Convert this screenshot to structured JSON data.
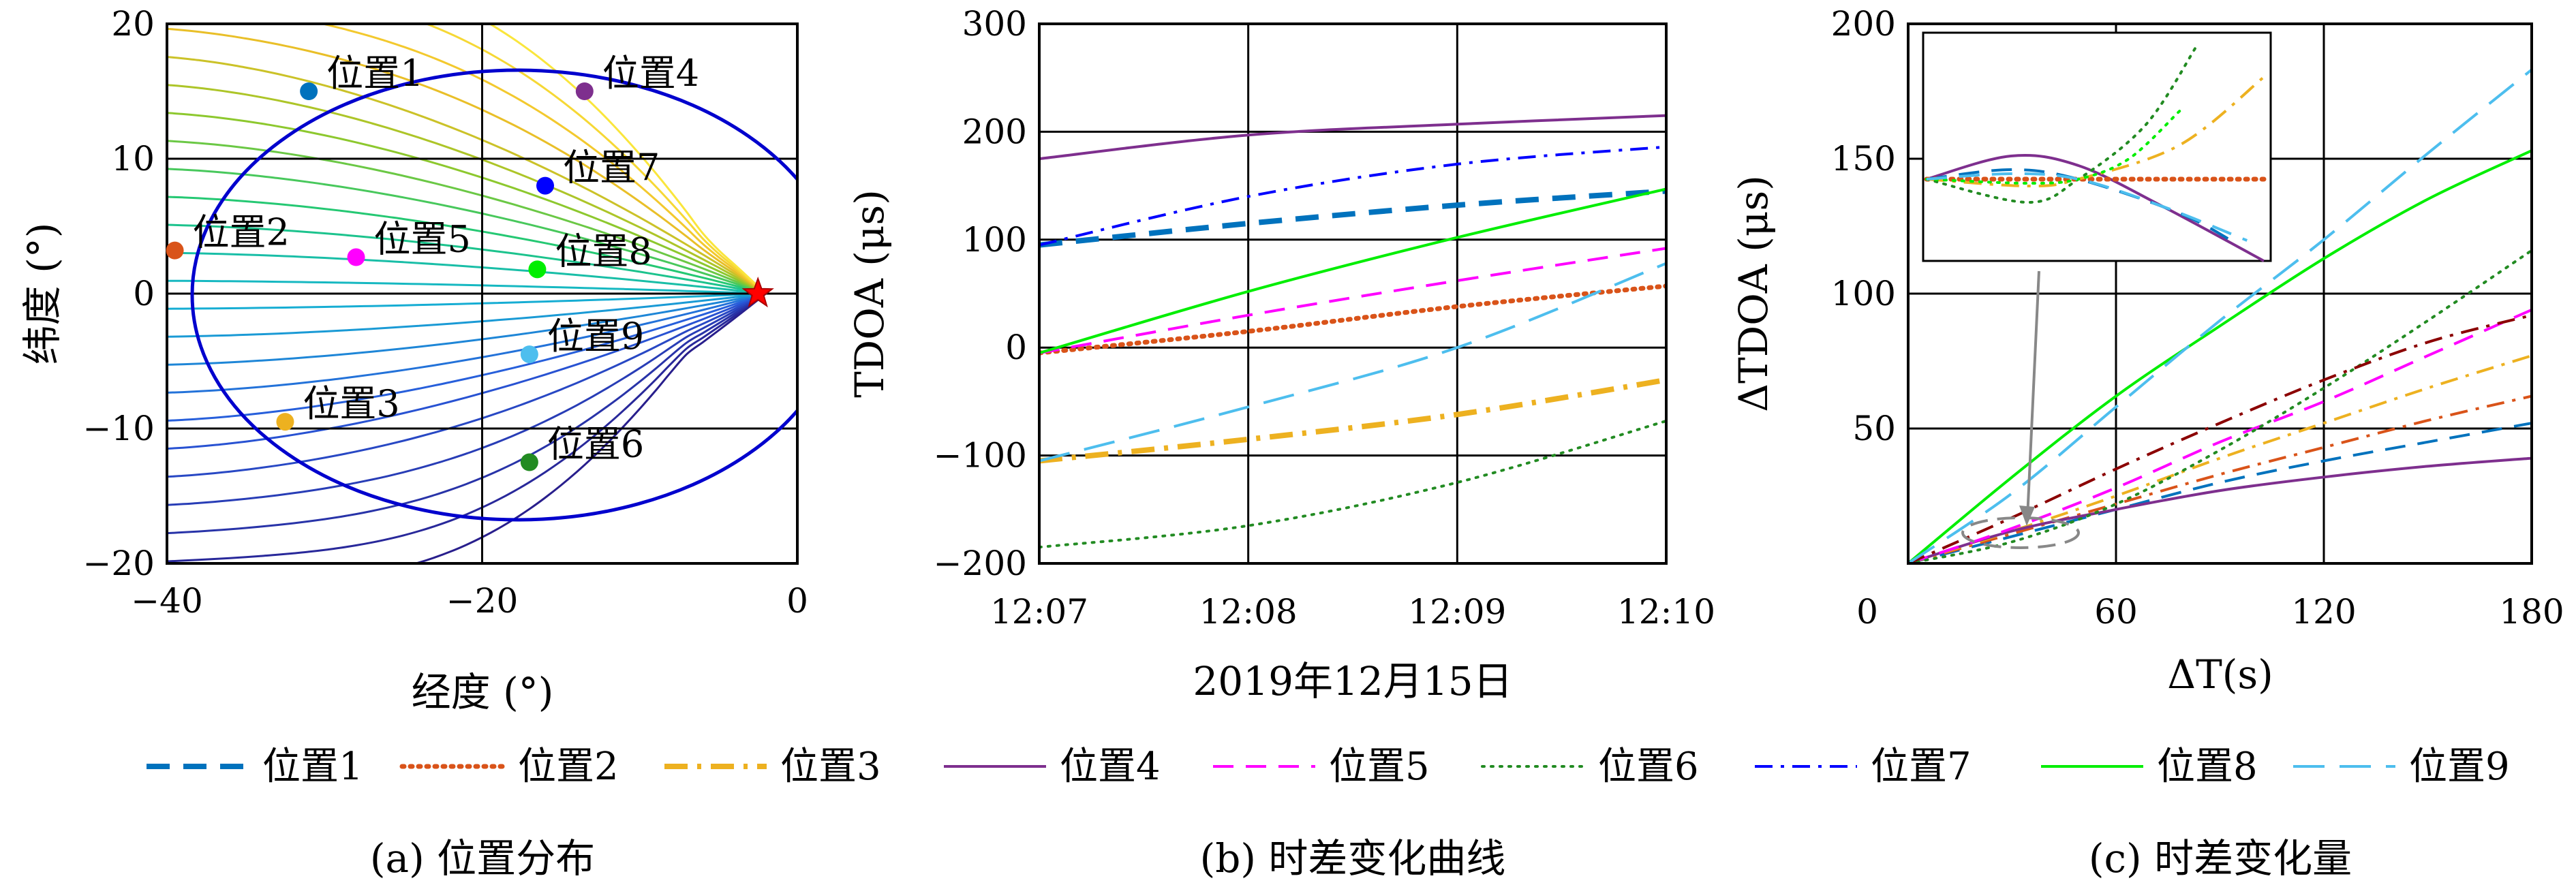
{
  "colors": {
    "pos1": "#0072BD",
    "pos2": "#D95319",
    "pos3": "#EDB120",
    "pos4": "#7E2F8E",
    "pos5": "#FF00FF",
    "pos6": "#228B22",
    "pos7": "#0000FF",
    "pos8": "#00EE00",
    "pos9": "#4DBEEE",
    "extra_c": "#8B0000",
    "star": "#FF0000",
    "ellipse": "#0000CD"
  },
  "legend": {
    "items": [
      {
        "key": "pos1",
        "label": "位置1",
        "style": "dashed-thick"
      },
      {
        "key": "pos2",
        "label": "位置2",
        "style": "dotted-thick"
      },
      {
        "key": "pos3",
        "label": "位置3",
        "style": "dashdot-thick"
      },
      {
        "key": "pos4",
        "label": "位置4",
        "style": "solid"
      },
      {
        "key": "pos5",
        "label": "位置5",
        "style": "dashed"
      },
      {
        "key": "pos6",
        "label": "位置6",
        "style": "dotted"
      },
      {
        "key": "pos7",
        "label": "位置7",
        "style": "dashdot"
      },
      {
        "key": "pos8",
        "label": "位置8",
        "style": "solid"
      },
      {
        "key": "pos9",
        "label": "位置9",
        "style": "dashed-long"
      }
    ]
  },
  "chart_data": [
    {
      "type": "scatter",
      "caption": "(a) 位置分布",
      "xlabel": "经度 (°)",
      "ylabel": "纬度 (°)",
      "xlim": [
        -40,
        0
      ],
      "ylim": [
        -20,
        20
      ],
      "xticks": [
        "−40",
        "−20",
        "0"
      ],
      "yticks": [
        "−20",
        "−10",
        "0",
        "10",
        "20"
      ],
      "grid": true,
      "points": [
        {
          "label": "位置1",
          "x": -31,
          "y": 15,
          "key": "pos1"
        },
        {
          "label": "位置2",
          "x": -39.5,
          "y": 3.2,
          "key": "pos2"
        },
        {
          "label": "位置3",
          "x": -32.5,
          "y": -9.5,
          "key": "pos3"
        },
        {
          "label": "位置4",
          "x": -13.5,
          "y": 15,
          "key": "pos4"
        },
        {
          "label": "位置5",
          "x": -28,
          "y": 2.7,
          "key": "pos5"
        },
        {
          "label": "位置6",
          "x": -17,
          "y": -12.5,
          "key": "pos6"
        },
        {
          "label": "位置7",
          "x": -16,
          "y": 8,
          "key": "pos7"
        },
        {
          "label": "位置8",
          "x": -16.5,
          "y": 1.8,
          "key": "pos8"
        },
        {
          "label": "位置9",
          "x": -17,
          "y": -4.5,
          "key": "pos9"
        }
      ],
      "reference_star": {
        "x": -2.5,
        "y": 0
      },
      "coverage_boundary": "ellipse"
    },
    {
      "type": "line",
      "caption": "(b) 时差变化曲线",
      "xlabel": "2019年12月15日",
      "ylabel": "TDOA (μs)",
      "xticks": [
        "12:07",
        "12:08",
        "12:09",
        "12:10"
      ],
      "x": [
        0,
        1,
        2,
        3
      ],
      "xlim": [
        0,
        3
      ],
      "ylim": [
        -200,
        300
      ],
      "yticks": [
        "−200",
        "−100",
        "0",
        "100",
        "200",
        "300"
      ],
      "grid": true,
      "series": [
        {
          "name": "位置1",
          "key": "pos1",
          "style": "dashed-thick",
          "values": [
            95,
            115,
            132,
            145
          ]
        },
        {
          "name": "位置2",
          "key": "pos2",
          "style": "dotted-thick",
          "values": [
            -5,
            15,
            38,
            57
          ]
        },
        {
          "name": "位置3",
          "key": "pos3",
          "style": "dashdot-thick",
          "values": [
            -105,
            -85,
            -62,
            -30
          ]
        },
        {
          "name": "位置4",
          "key": "pos4",
          "style": "solid",
          "values": [
            175,
            197,
            207,
            215
          ]
        },
        {
          "name": "位置5",
          "key": "pos5",
          "style": "dashed",
          "values": [
            -5,
            30,
            62,
            92
          ]
        },
        {
          "name": "位置6",
          "key": "pos6",
          "style": "dotted",
          "values": [
            -185,
            -165,
            -125,
            -68
          ]
        },
        {
          "name": "位置7",
          "key": "pos7",
          "style": "dashdot",
          "values": [
            95,
            140,
            170,
            186
          ]
        },
        {
          "name": "位置8",
          "key": "pos8",
          "style": "solid",
          "values": [
            -5,
            52,
            102,
            147
          ]
        },
        {
          "name": "位置9",
          "key": "pos9",
          "style": "dashed-long",
          "values": [
            -105,
            -55,
            0,
            78
          ]
        }
      ]
    },
    {
      "type": "line",
      "caption": "(c) 时差变化量",
      "xlabel": "ΔT(s)",
      "ylabel": "ΔTDOA (μs)",
      "xticks": [
        "0",
        "60",
        "120",
        "180"
      ],
      "yticks": [
        "50",
        "100",
        "150",
        "200"
      ],
      "x": [
        0,
        30,
        60,
        90,
        120,
        150,
        180
      ],
      "xlim": [
        0,
        180
      ],
      "ylim": [
        0,
        200
      ],
      "grid": true,
      "series": [
        {
          "name": "位置1",
          "key": "pos1",
          "style": "dashed",
          "values": [
            0,
            10,
            20,
            30,
            38,
            45,
            52
          ]
        },
        {
          "name": "位置2",
          "key": "pos2",
          "style": "dashdot",
          "values": [
            0,
            11,
            22,
            33,
            43,
            53,
            62
          ]
        },
        {
          "name": "位置3",
          "key": "pos3",
          "style": "dashdot",
          "values": [
            0,
            12,
            25,
            39,
            52,
            65,
            77
          ]
        },
        {
          "name": "位置4",
          "key": "pos4",
          "style": "solid",
          "values": [
            0,
            12,
            20,
            27,
            32,
            36,
            39
          ]
        },
        {
          "name": "位置5",
          "key": "pos5",
          "style": "dashed",
          "values": [
            0,
            13,
            28,
            45,
            60,
            77,
            94
          ]
        },
        {
          "name": "位置6",
          "key": "pos6",
          "style": "dotted",
          "values": [
            0,
            8,
            22,
            42,
            65,
            90,
            116
          ]
        },
        {
          "name": "位置7",
          "key": "extra_c",
          "style": "dashdot",
          "values": [
            0,
            17,
            35,
            52,
            68,
            82,
            92
          ]
        },
        {
          "name": "位置8",
          "key": "pos8",
          "style": "solid",
          "values": [
            0,
            32,
            62,
            88,
            113,
            135,
            153
          ]
        },
        {
          "name": "位置9",
          "key": "pos9",
          "style": "dashed-long",
          "values": [
            0,
            26,
            58,
            90,
            120,
            152,
            183
          ]
        }
      ],
      "inset": "zoom near origin"
    }
  ]
}
